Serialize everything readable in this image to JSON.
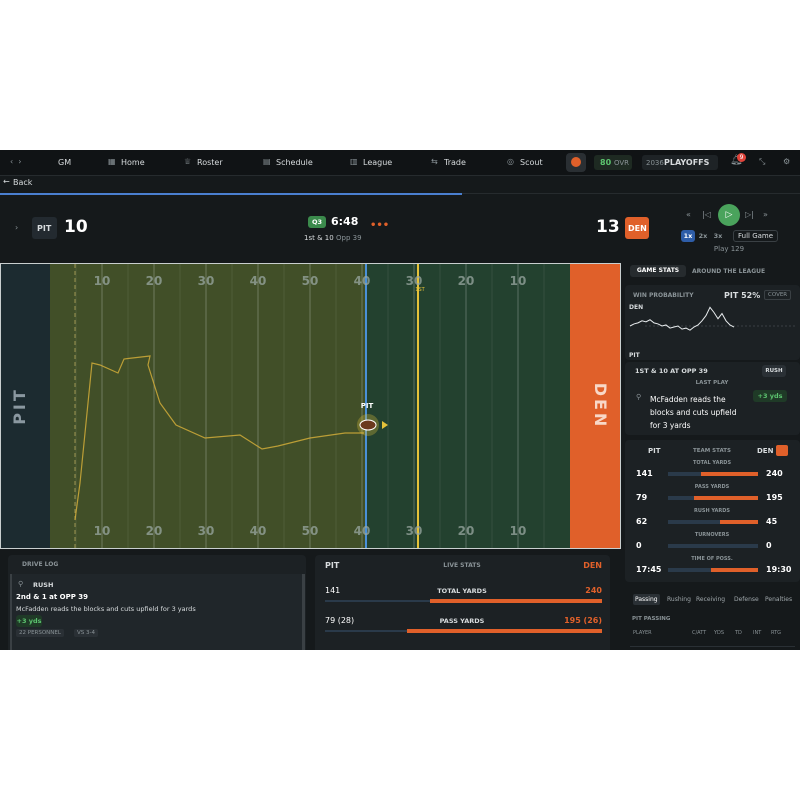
{
  "nav": {
    "user": "GM",
    "items": [
      "Home",
      "Roster",
      "Schedule",
      "League",
      "Trade",
      "Scout"
    ],
    "ovr_value": "80",
    "ovr_label": "OVR",
    "season": "2036",
    "phase": "PLAYOFFS",
    "notifications": "9"
  },
  "back": "Back",
  "scoreboard": {
    "home_team": "PIT",
    "home_score": "10",
    "quarter": "Q3",
    "clock": "6:48",
    "down": "1st & 10",
    "spot": "Opp 39",
    "away_score": "13",
    "away_team": "DEN",
    "speeds": [
      "1x",
      "2x",
      "3x"
    ],
    "full_game": "Full Game",
    "play": "Play 129"
  },
  "field": {
    "left_endzone": "PIT",
    "right_endzone": "DEN",
    "yard_numbers": [
      "10",
      "20",
      "30",
      "40",
      "50",
      "40",
      "30",
      "20",
      "10"
    ],
    "first_down_label": "1ST",
    "ball_label": "PIT"
  },
  "right_panel": {
    "tabs": [
      "GAME STATS",
      "AROUND THE LEAGUE"
    ],
    "win_probability": {
      "title": "WIN PROBABILITY",
      "leader": "PIT 52%",
      "toggle": "COVER",
      "top_label": "DEN",
      "bottom_label": "PIT",
      "values": [
        50,
        46,
        44,
        40,
        42,
        38,
        44,
        46,
        50,
        48,
        54,
        52,
        50,
        56,
        54,
        58,
        52,
        48,
        40,
        30,
        14,
        24,
        36,
        26,
        40,
        48,
        52
      ]
    },
    "situation": "1ST & 10 AT OPP 39",
    "play_type": "RUSH",
    "last_play_label": "LAST PLAY",
    "last_play": "McFadden reads the blocks and cuts upfield for 3 yards",
    "gain": "+3 yds"
  },
  "team_stats": {
    "left": "PIT",
    "title": "TEAM STATS",
    "right": "DEN",
    "rows": [
      {
        "label": "TOTAL YARDS",
        "left": 141,
        "right": 240
      },
      {
        "label": "PASS YARDS",
        "left": 79,
        "right": 195
      },
      {
        "label": "RUSH YARDS",
        "left": 62,
        "right": 45
      },
      {
        "label": "TURNOVERS",
        "left": 0,
        "right": 0
      },
      {
        "label": "TIME OF POSS.",
        "left": "17:45",
        "right": "19:30"
      }
    ]
  },
  "stat_tabs": [
    "Passing",
    "Rushing",
    "Receiving",
    "Defense",
    "Penalties"
  ],
  "passing": {
    "title": "PIT PASSING",
    "headers": [
      "PLAYER",
      "C/ATT",
      "YDS",
      "TD",
      "INT",
      "RTG"
    ]
  },
  "drive_log": {
    "title": "DRIVE LOG",
    "play_type": "RUSH",
    "situation": "2nd & 1 at OPP 39",
    "text": "McFadden reads the blocks and cuts upfield for 3 yards",
    "gain": "+3 yds",
    "tags": [
      "22 PERSONNEL",
      "VS 3-4"
    ]
  },
  "live_stats": {
    "left": "PIT",
    "title": "LIVE STATS",
    "right": "DEN",
    "rows": [
      {
        "left": "141",
        "label": "TOTAL YARDS",
        "right": "240"
      },
      {
        "left": "79 (28)",
        "label": "PASS YARDS",
        "right": "195 (26)"
      }
    ]
  }
}
